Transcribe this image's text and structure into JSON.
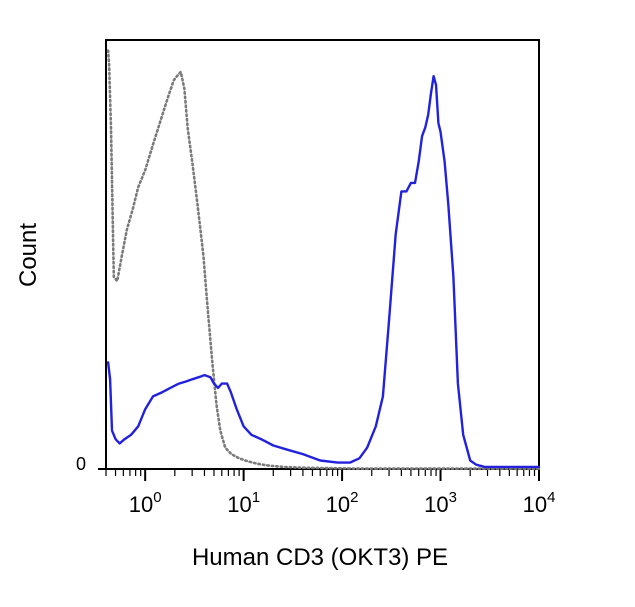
{
  "chart_data": {
    "type": "line",
    "title": "",
    "xlabel": "Human CD3 (OKT3) PE",
    "ylabel": "Count",
    "x_scale": "log10",
    "xlim": [
      0.4,
      10000
    ],
    "ylim": [
      0,
      100
    ],
    "grid": false,
    "legend": "none",
    "x_ticks": [
      {
        "base": "10",
        "exp": "0",
        "value": 1
      },
      {
        "base": "10",
        "exp": "1",
        "value": 10
      },
      {
        "base": "10",
        "exp": "2",
        "value": 100
      },
      {
        "base": "10",
        "exp": "3",
        "value": 1000
      },
      {
        "base": "10",
        "exp": "4",
        "value": 10000
      }
    ],
    "y_ticks": [
      {
        "label": "0",
        "value": 0
      }
    ],
    "series": [
      {
        "color": "#7b7b7b",
        "style": "dotted",
        "x": [
          0.42,
          0.43,
          0.45,
          0.48,
          0.52,
          0.58,
          0.65,
          0.75,
          0.85,
          1.0,
          1.2,
          1.45,
          1.7,
          1.95,
          2.1,
          2.3,
          2.5,
          2.7,
          3.0,
          3.4,
          3.9,
          4.3,
          4.8,
          5.3,
          5.8,
          6.5,
          7.5,
          9.0,
          11,
          14,
          18,
          25,
          40,
          70,
          150,
          500,
          2000,
          10000
        ],
        "y": [
          98,
          95,
          80,
          45,
          44,
          50,
          56,
          61,
          66,
          70,
          76,
          82,
          87,
          91,
          92,
          93,
          89,
          80,
          72,
          62,
          50,
          38,
          25,
          15,
          9,
          5,
          3.5,
          2.5,
          1.8,
          1.2,
          0.8,
          0.5,
          0.3,
          0.2,
          0.1,
          0.1,
          0.1,
          0.1
        ]
      },
      {
        "color": "#2222dd",
        "style": "solid",
        "x": [
          0.42,
          0.44,
          0.46,
          0.5,
          0.55,
          0.62,
          0.72,
          0.85,
          1.0,
          1.2,
          1.5,
          1.8,
          2.2,
          2.6,
          3.0,
          3.5,
          4.0,
          4.6,
          5.0,
          5.5,
          6.0,
          6.8,
          7.4,
          8.5,
          10,
          12,
          15,
          20,
          28,
          40,
          60,
          90,
          120,
          150,
          180,
          220,
          260,
          300,
          350,
          400,
          450,
          500,
          550,
          600,
          650,
          700,
          750,
          800,
          850,
          900,
          950,
          1000,
          1100,
          1200,
          1350,
          1500,
          1700,
          2000,
          2300,
          2800,
          4000,
          6000,
          10000
        ],
        "y": [
          25,
          21,
          9,
          7,
          6,
          7,
          8,
          10,
          14,
          17,
          18,
          19,
          20,
          20.5,
          21,
          21.5,
          22,
          21.5,
          20,
          19,
          20,
          20,
          18,
          14,
          10,
          8,
          7,
          5.5,
          4.5,
          3.5,
          2,
          1.5,
          1.5,
          2.5,
          5,
          10,
          17,
          35,
          55,
          65,
          65,
          67,
          67,
          72,
          78,
          80,
          83,
          88,
          92,
          90,
          81,
          79,
          72,
          62,
          45,
          20,
          8,
          2,
          1,
          0.5,
          0.5,
          0.5,
          0.5
        ]
      }
    ]
  }
}
